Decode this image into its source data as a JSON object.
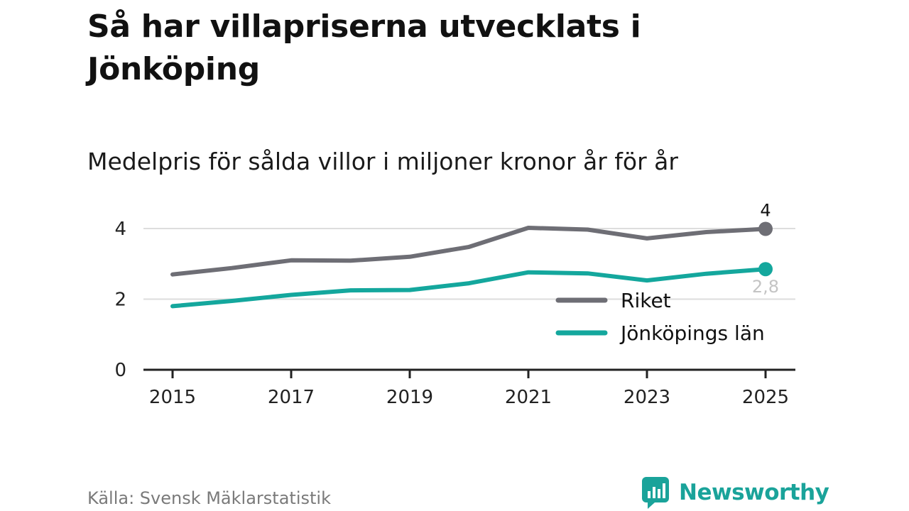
{
  "header": {
    "title": "Så har villapriserna utvecklats i Jönköping",
    "subtitle": "Medelpris för sålda villor i miljoner kronor år för år"
  },
  "footer": {
    "source": "Källa: Svensk Mäklarstatistik",
    "brand": "Newsworthy"
  },
  "colors": {
    "riket": "#6e6e75",
    "jonkoping": "#14a79d",
    "brand": "#1aa39a",
    "grid": "#dddddd",
    "axis": "#222222"
  },
  "chart_data": {
    "type": "line",
    "title": "Så har villapriserna utvecklats i Jönköping",
    "subtitle": "Medelpris för sålda villor i miljoner kronor år för år",
    "xlabel": "",
    "ylabel": "",
    "x": [
      2015,
      2016,
      2017,
      2018,
      2019,
      2020,
      2021,
      2022,
      2023,
      2024,
      2025
    ],
    "xticks": [
      "2015",
      "2017",
      "2019",
      "2021",
      "2023",
      "2025"
    ],
    "yticks": [
      "0",
      "2",
      "4"
    ],
    "ylim": [
      0,
      4
    ],
    "grid": true,
    "legend_position": "bottom-right",
    "series": [
      {
        "name": "Riket",
        "color": "#6e6e75",
        "values": [
          2.7,
          2.88,
          3.1,
          3.09,
          3.2,
          3.48,
          4.02,
          3.97,
          3.72,
          3.9,
          3.99
        ],
        "end_label": "4"
      },
      {
        "name": "Jönköpings län",
        "color": "#14a79d",
        "values": [
          1.8,
          1.95,
          2.12,
          2.25,
          2.26,
          2.45,
          2.76,
          2.73,
          2.53,
          2.72,
          2.85
        ],
        "end_label": "2,8"
      }
    ]
  }
}
